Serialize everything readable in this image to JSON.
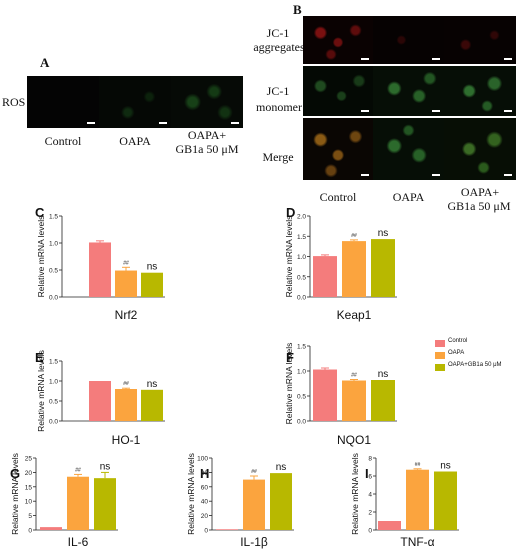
{
  "panelA": {
    "letter": "A",
    "row_label": "ROS",
    "columns": [
      "Control",
      "OAPA",
      "OAPA+",
      "GB1a 50 μM"
    ]
  },
  "panelB": {
    "letter": "B",
    "rows": [
      {
        "line1": "JC-1",
        "line2": "aggregates"
      },
      {
        "line1": "JC-1",
        "line2": "monomer"
      },
      {
        "line1": "Merge",
        "line2": ""
      }
    ],
    "columns": [
      "Control",
      "OAPA",
      "OAPA+",
      "GB1a 50 μM"
    ]
  },
  "legend": {
    "items": [
      {
        "label": "Control",
        "color": "#f47c7c"
      },
      {
        "label": "OAPA",
        "color": "#fba43e"
      },
      {
        "label": "OAPA+GB1a 50 μM",
        "color": "#b8b800"
      }
    ]
  },
  "colors": {
    "control": "#f47c7c",
    "oapa": "#fba43e",
    "gb1a": "#b8b800"
  },
  "chart_data": [
    {
      "panel": "C",
      "type": "bar",
      "xlabel": "Nrf2",
      "ylabel": "Relative mRNA levels",
      "ylim": [
        0,
        1.5
      ],
      "ticks": [
        0.0,
        0.5,
        1.0,
        1.5
      ],
      "tick_labels": [
        "0.0",
        "0.5",
        "1.0",
        "1.5"
      ],
      "values": [
        1.01,
        0.49,
        0.45
      ],
      "errors": [
        0.03,
        0.06,
        0.0
      ],
      "annotations": [
        "",
        "##",
        "ns"
      ]
    },
    {
      "panel": "D",
      "type": "bar",
      "xlabel": "Keap1",
      "ylabel": "Relative mRNA levels",
      "ylim": [
        0,
        2.0
      ],
      "ticks": [
        0.0,
        0.5,
        1.0,
        1.5,
        2.0
      ],
      "tick_labels": [
        "0.0",
        "0.5",
        "1.0",
        "1.5",
        "2.0"
      ],
      "values": [
        1.01,
        1.38,
        1.43
      ],
      "errors": [
        0.03,
        0.03,
        0.0
      ],
      "annotations": [
        "",
        "##",
        "ns"
      ]
    },
    {
      "panel": "E",
      "type": "bar",
      "xlabel": "HO-1",
      "ylabel": "Relative mRNA levels",
      "ylim": [
        0,
        1.5
      ],
      "ticks": [
        0.0,
        0.5,
        1.0,
        1.5
      ],
      "tick_labels": [
        "0.0",
        "0.5",
        "1.0",
        "1.5"
      ],
      "values": [
        1.0,
        0.8,
        0.78
      ],
      "errors": [
        0.0,
        0.02,
        0.0
      ],
      "annotations": [
        "",
        "##",
        "ns"
      ]
    },
    {
      "panel": "F",
      "type": "bar",
      "xlabel": "NQO1",
      "ylabel": "Relative mRNA levels",
      "ylim": [
        0,
        1.5
      ],
      "ticks": [
        0.0,
        0.5,
        1.0,
        1.5
      ],
      "tick_labels": [
        "0.0",
        "0.5",
        "1.0",
        "1.5"
      ],
      "values": [
        1.03,
        0.81,
        0.82
      ],
      "errors": [
        0.03,
        0.02,
        0.0
      ],
      "annotations": [
        "",
        "##",
        "ns"
      ]
    },
    {
      "panel": "G",
      "type": "bar",
      "xlabel": "IL-6",
      "ylabel": "Relative mRNA levels",
      "ylim": [
        0,
        25
      ],
      "ticks": [
        0,
        5,
        10,
        15,
        20,
        25
      ],
      "tick_labels": [
        "0",
        "5",
        "10",
        "15",
        "20",
        "25"
      ],
      "values": [
        1.0,
        18.5,
        18.0
      ],
      "errors": [
        0.0,
        0.8,
        2.0
      ],
      "annotations": [
        "",
        "##",
        "ns"
      ]
    },
    {
      "panel": "H",
      "type": "bar",
      "xlabel": "IL-1β",
      "ylabel": "Relative mRNA levels",
      "ylim": [
        0,
        100
      ],
      "ticks": [
        0,
        20,
        40,
        60,
        80,
        100
      ],
      "tick_labels": [
        "0",
        "20",
        "40",
        "60",
        "80",
        "100"
      ],
      "values": [
        1.0,
        70.0,
        79.0
      ],
      "errors": [
        0.0,
        5.0,
        0.0
      ],
      "annotations": [
        "",
        "##",
        "ns"
      ]
    },
    {
      "panel": "I",
      "type": "bar",
      "xlabel": "TNF-α",
      "ylabel": "Relative mRNA levels",
      "ylim": [
        0,
        8
      ],
      "ticks": [
        0,
        2,
        4,
        6,
        8
      ],
      "tick_labels": [
        "0",
        "2",
        "4",
        "6",
        "8"
      ],
      "values": [
        1.0,
        6.7,
        6.5
      ],
      "errors": [
        0.0,
        0.1,
        0.0
      ],
      "annotations": [
        "",
        "##",
        "ns"
      ]
    }
  ]
}
